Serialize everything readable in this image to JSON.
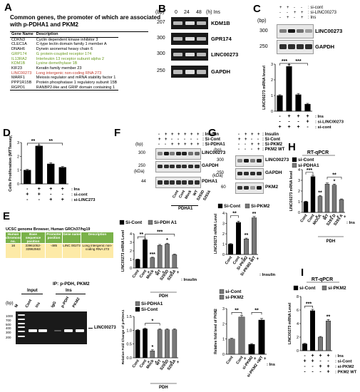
{
  "panels": {
    "A": {
      "label": "A",
      "title_line1": "Common genes, the promoter of which are associated",
      "title_line2": "with p-PDHA1 and PKM2",
      "col_gene": "Gene Name",
      "col_desc": "Description",
      "genes": [
        {
          "name": "CDKN3",
          "desc": "Cyclin dependent kinase inhibitor 3",
          "color": "#000000"
        },
        {
          "name": "CLEC1A",
          "desc": "C-type lectin domain family 1 member A",
          "color": "#000000"
        },
        {
          "name": "DNAH6",
          "desc": "Dynein axonemal heavy chain 6",
          "color": "#000000"
        },
        {
          "name": "GRP174",
          "desc": "G protein-coupled receptor 174",
          "color": "#6a9a1f"
        },
        {
          "name": "IL13RA2",
          "desc": "Interleukin 13 receptor subunit alpha 2",
          "color": "#6a9a1f"
        },
        {
          "name": "KDM1B",
          "desc": "Lysine demethylase 1B",
          "color": "#6a9a1f"
        },
        {
          "name": "KIF23",
          "desc": "Keratin family member 23",
          "color": "#000000"
        },
        {
          "name": "LINC00273",
          "desc": "Long intergenic non-coding RNA 273",
          "color": "#c0392b"
        },
        {
          "name": "MARF1",
          "desc": "Meiosis regulator and mRNA stability factor 1",
          "color": "#000000"
        },
        {
          "name": "PPP1R15B",
          "desc": "Protein phosphatase 1 regulatory subunit 15B",
          "color": "#000000"
        },
        {
          "name": "RGPD1",
          "desc": "RANBP2-like and GRIP domain containing 1",
          "color": "#000000"
        }
      ]
    },
    "B": {
      "label": "B",
      "bp": "(bp)",
      "times": [
        "0",
        "24",
        "48"
      ],
      "time_unit": "(h) Ins",
      "rows": [
        {
          "size": "207",
          "name": "KDM1B"
        },
        {
          "size": "300",
          "name": "GPR174"
        },
        {
          "size": "300",
          "name": "LINC00273"
        },
        {
          "size": "250",
          "name": "GAPDH"
        }
      ]
    },
    "C": {
      "label": "C",
      "sicont": ": si-cont",
      "silinc": ": si-LINC00273",
      "ins": ": Ins",
      "bp": "(bp)",
      "rows": [
        {
          "size": "300",
          "name": "LINC00273"
        },
        {
          "size": "250",
          "name": "GAPDH"
        }
      ],
      "chart_data": {
        "type": "bar",
        "ylabel": "LINC00273 mRNA levevl",
        "yticks": [
          "0",
          "1",
          "2",
          "3"
        ],
        "ylim": [
          0,
          3
        ],
        "values": [
          1.0,
          2.85,
          1.05,
          0.45
        ],
        "errors": [
          0.05,
          0.12,
          0.08,
          0.05
        ],
        "sig": [
          "***",
          "***"
        ],
        "cond_rows": [
          {
            "name": ": Ins",
            "signs": [
              "-",
              "+",
              "+",
              "+"
            ]
          },
          {
            "name": ": si-LINC00273",
            "signs": [
              "-",
              "-",
              "-",
              "+"
            ]
          },
          {
            "name": ": si-cont",
            "signs": [
              "+",
              "+",
              "+",
              "-"
            ]
          }
        ]
      }
    },
    "D": {
      "label": "D",
      "chart_data": {
        "type": "bar",
        "ylabel": "Cells Proliferation (MTTassay)",
        "yticks": [
          "0",
          "1",
          "2",
          "3"
        ],
        "ylim": [
          0,
          3
        ],
        "values": [
          1.0,
          2.75,
          1.45,
          1.2
        ],
        "errors": [
          0.05,
          0.08,
          0.08,
          0.06
        ],
        "sig": [
          "**",
          "**"
        ],
        "cond_rows": [
          {
            "name": ": Ins",
            "signs": [
              "-",
              "+",
              "+",
              "+"
            ]
          },
          {
            "name": ": si-cont",
            "signs": [
              "+",
              "+",
              "-",
              "-"
            ]
          },
          {
            "name": ": si-LINC273",
            "signs": [
              "-",
              "-",
              "+",
              "+"
            ]
          }
        ]
      }
    },
    "E": {
      "label": "E",
      "browser": "UCSC genome Browser, Human GRCh37/hg19",
      "headers": [
        "Human chromosome no.",
        "Base sequence position",
        "Promoter position",
        "Gene name",
        "Description"
      ],
      "row": [
        "16",
        "33961052-33962563",
        "-485",
        "LINC 00273",
        "Long intergenic non-coding RNA 273"
      ],
      "ip": "IP: p-PDH, PKM2",
      "input": "Input",
      "ins": "Ins",
      "bp": "(bp)",
      "lanes": [
        "M",
        "Cont",
        "Ins",
        "IgG",
        "p-PDH",
        "PKM2"
      ],
      "ladder": [
        "1000",
        "700",
        "500",
        "400",
        "300",
        "200"
      ],
      "product": "LINC00273"
    },
    "F": {
      "label": "F",
      "insulin": ": Insulin",
      "sicont": ": Si-Cont",
      "sipdha": ": Si-PDHA1",
      "bp": "(bp)",
      "kda": "(kDa)",
      "rows": [
        {
          "size": "300",
          "name": "LINC00273"
        },
        {
          "size": "250",
          "name": "GAPDH"
        },
        {
          "size": "44",
          "name": "PDHA1"
        }
      ],
      "lanes": [
        "Cont",
        "Cont",
        "Mock",
        "WT",
        "S293D",
        "S293A"
      ],
      "group": "PDHA1",
      "chart1": {
        "type": "bar",
        "legend": [
          "Si-Cont",
          "Si-PDH A1"
        ],
        "ylabel": "LINC00273 mRNA Level",
        "yticks": [
          "0",
          "1",
          "2",
          "3",
          "4"
        ],
        "ylim": [
          0,
          4
        ],
        "values": [
          1.0,
          3.3,
          1.2,
          2.65,
          2.8,
          1.55
        ],
        "errors": [
          0.05,
          0.12,
          0.06,
          0.1,
          0.1,
          0.08
        ],
        "sig": [
          "**",
          "***",
          "*",
          "*"
        ],
        "xlabels": [
          "Cont",
          "Cont",
          "Mock",
          "WT",
          "S293D",
          "S293A"
        ],
        "insulin": ": Insulin",
        "group": "PDH"
      },
      "chart2": {
        "type": "bar",
        "legend": [
          "Si-PDHA1",
          "Si-Cont"
        ],
        "ylabel": "Relative Fold Change of p-PDHA1",
        "yticks": [
          "0.0",
          "0.5",
          "1.0",
          "1.5"
        ],
        "ylim": [
          0,
          1.5
        ],
        "values": [
          1.0,
          1.05,
          0.25,
          1.02,
          1.02,
          1.02
        ],
        "errors": [
          0.03,
          0.03,
          0.04,
          0.03,
          0.03,
          0.03
        ],
        "sig": [
          "*",
          "*"
        ],
        "xlabels": [
          "Cont",
          "Cont",
          "Mock",
          "WT",
          "S293D",
          "S293A"
        ],
        "group": "PDH"
      }
    },
    "G": {
      "label": "G",
      "insulin": ": Insulin",
      "sicont": ": Si-Cont",
      "sipkm": ": Si-PKM2",
      "pkmwt": ": PKM2 WT",
      "bp": "(bp)",
      "kda": "(kDa)",
      "rows": [
        {
          "size": "300",
          "name": "LINC00273"
        },
        {
          "size": "250",
          "name": "GAPDH"
        },
        {
          "size": "60",
          "name": "PKM2"
        }
      ],
      "chart1": {
        "type": "bar",
        "legend": [
          "Si-Cont",
          "Si-PKM2"
        ],
        "ylabel": "LINC00273 mRNA Level",
        "yticks": [
          "0",
          "1",
          "2",
          "3",
          "4"
        ],
        "ylim": [
          0,
          4
        ],
        "values": [
          1.0,
          3.1,
          1.5,
          3.55
        ],
        "errors": [
          0.05,
          0.12,
          0.08,
          0.12
        ],
        "sig": [
          "**",
          "**",
          "**"
        ],
        "xlabels": [
          "Cont",
          "Cont",
          "Si-PKM2",
          "Si-PKM2 WT"
        ],
        "insulin": ": Insulin"
      },
      "chart2": {
        "type": "bar",
        "legend": [
          "si-Cont",
          "si-PKM2"
        ],
        "ylabel": "Relative fold level of PKM2",
        "yticks": [
          "0",
          "1",
          "2",
          "3"
        ],
        "ylim": [
          0,
          3
        ],
        "values": [
          1.0,
          2.45,
          0.65,
          2.25
        ],
        "errors": [
          0.05,
          0.1,
          0.05,
          0.1
        ],
        "sig": [
          "**",
          "**"
        ],
        "xlabels": [
          "Cont",
          "Cont",
          "si-PKM2",
          "si-PKM2 +WT"
        ],
        "ins": ": Ins"
      }
    },
    "H": {
      "label": "H",
      "title": "RT-qPCR",
      "chart_data": {
        "type": "bar",
        "legend": [
          "si-Cont",
          "si-PDHA1"
        ],
        "ylabel": "LINC00273 mRNA level",
        "yticks": [
          "0",
          "1",
          "2",
          "3",
          "4"
        ],
        "ylim": [
          0,
          4
        ],
        "values": [
          1.0,
          3.35,
          1.5,
          2.65,
          2.55,
          1.2
        ],
        "errors": [
          0.05,
          0.12,
          0.08,
          0.1,
          0.1,
          0.06
        ],
        "sig": [
          "***",
          "**",
          "*",
          "*"
        ],
        "xlabels": [
          "Cont",
          "Cont",
          "MOCK",
          "WT",
          "S293 D",
          "S293 A"
        ],
        "ins": ": Ins",
        "group": "PDH"
      }
    },
    "I": {
      "label": "I",
      "title": "RT-qPCR",
      "chart_data": {
        "type": "bar",
        "legend": [
          "si-Cont",
          "si-PKM2"
        ],
        "ylabel": "LINC00273 mRNA Level",
        "yticks": [
          "0",
          "2",
          "4",
          "6",
          "8"
        ],
        "ylim": [
          0,
          8
        ],
        "values": [
          1.0,
          5.9,
          2.0,
          4.4
        ],
        "errors": [
          0.08,
          0.2,
          0.1,
          0.2
        ],
        "sig": [
          "***",
          "**"
        ],
        "cond_rows": [
          {
            "name": ": Ins",
            "signs": [
              "-",
              "+",
              "+",
              "+"
            ]
          },
          {
            "name": ": si-Cont",
            "signs": [
              "+",
              "+",
              "-",
              "-"
            ]
          },
          {
            "name": ": si-PKM2",
            "signs": [
              "-",
              "-",
              "+",
              "+"
            ]
          },
          {
            "name": ": PKM2 WT",
            "signs": [
              "-",
              "-",
              "-",
              "+"
            ]
          }
        ]
      }
    }
  }
}
